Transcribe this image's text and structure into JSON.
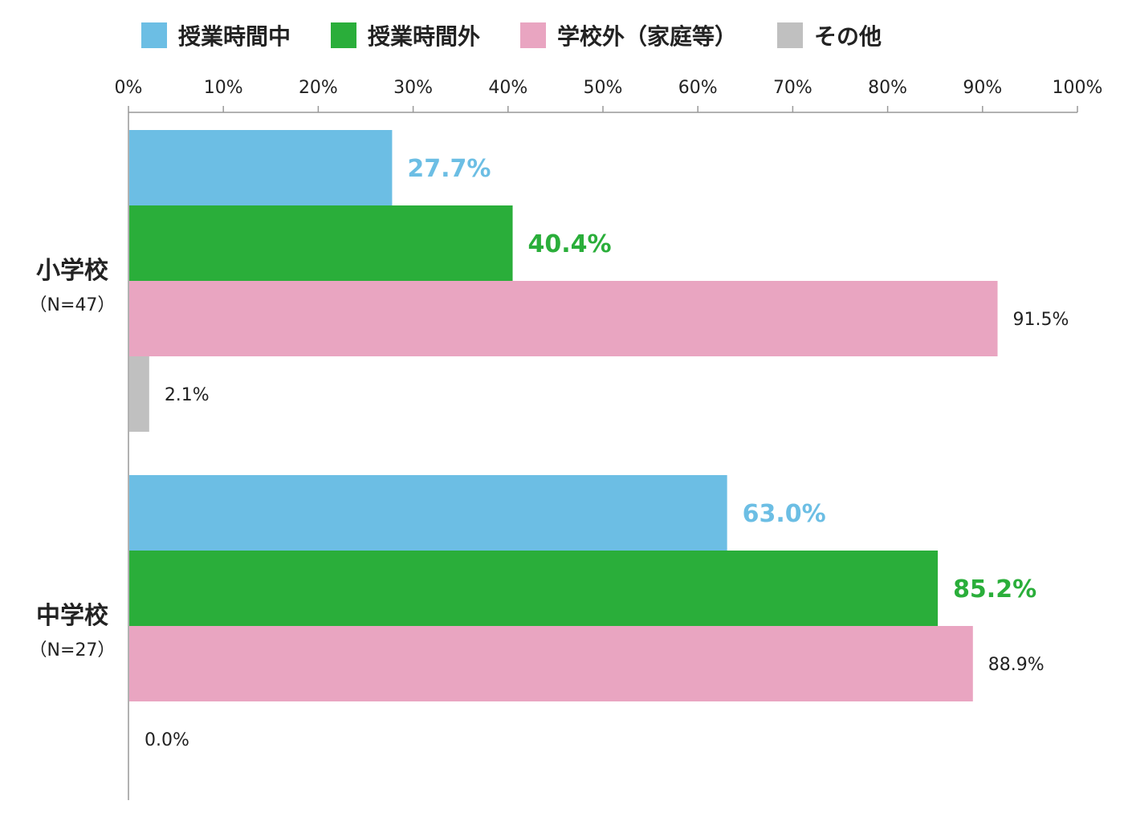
{
  "chart_data": {
    "type": "bar",
    "orientation": "horizontal",
    "categories": [
      "小学校",
      "中学校"
    ],
    "category_notes": [
      "（N=47）",
      "（N=27）"
    ],
    "series": [
      {
        "name": "授業時間中",
        "color": "#6cbee4",
        "values": [
          27.7,
          63.0
        ],
        "labels": [
          "27.7%",
          "63.0%"
        ],
        "label_color": "#6cbee4"
      },
      {
        "name": "授業時間外",
        "color": "#2aae3a",
        "values": [
          40.4,
          85.2
        ],
        "labels": [
          "40.4%",
          "85.2%"
        ],
        "label_color": "#2aae3a"
      },
      {
        "name": "学校外（家庭等）",
        "color": "#e9a5c1",
        "values": [
          91.5,
          88.9
        ],
        "labels": [
          "91.5%",
          "88.9%"
        ],
        "label_color": "#222222"
      },
      {
        "name": "その他",
        "color": "#c0c0c0",
        "values": [
          2.1,
          0.0
        ],
        "labels": [
          "2.1%",
          "0.0%"
        ],
        "label_color": "#222222"
      }
    ],
    "xlim": [
      0,
      100
    ],
    "ticks": [
      "0%",
      "10%",
      "20%",
      "30%",
      "40%",
      "50%",
      "60%",
      "70%",
      "80%",
      "90%",
      "100%"
    ],
    "legend_position": "top",
    "grid": false
  }
}
